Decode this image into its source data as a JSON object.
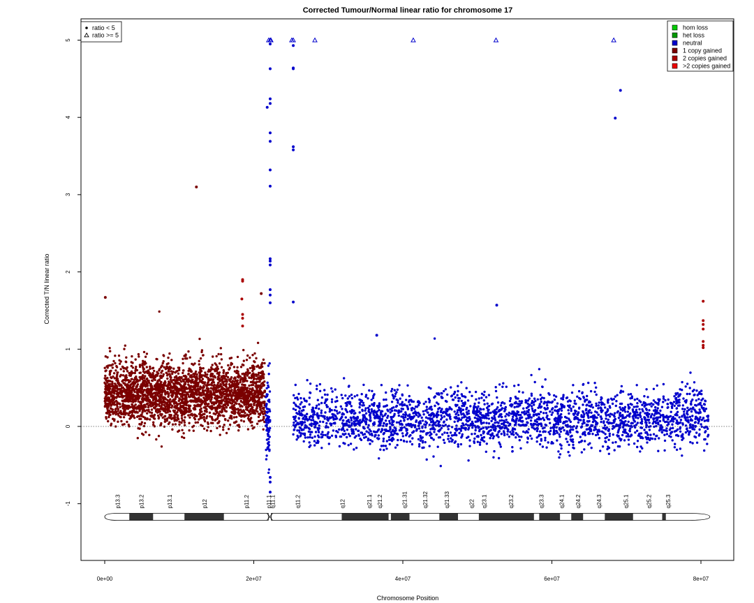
{
  "chart_data": {
    "type": "scatter",
    "title": "Corrected Tumour/Normal linear ratio for chromosome  17",
    "xlabel": "Chromosome Position",
    "ylabel": "Corrected T/N linear ratio",
    "xlim": [
      -3000000,
      84000000
    ],
    "ylim": [
      -1.8,
      5.3
    ],
    "x_ticks": [
      0,
      20000000,
      40000000,
      60000000,
      80000000
    ],
    "x_tick_labels": [
      "0e+00",
      "2e+07",
      "4e+07",
      "6e+07",
      "8e+07"
    ],
    "y_ticks": [
      -1,
      0,
      1,
      2,
      3,
      4,
      5
    ],
    "y_tick_labels": [
      "-1",
      "0",
      "1",
      "2",
      "3",
      "4",
      "5"
    ],
    "reference_line_y": 0,
    "colors": {
      "hom_loss": "#00cc00",
      "het_loss": "#009900",
      "neutral": "#0000cc",
      "one_copy_gained": "#7a0000",
      "two_copies_gained": "#aa0000",
      "more_copies_gained": "#ee0000"
    },
    "legend_state": {
      "position": "top-right",
      "entries": [
        {
          "label": "hom loss",
          "color": "#00cc00"
        },
        {
          "label": "het loss",
          "color": "#009900"
        },
        {
          "label": "neutral",
          "color": "#0000cc"
        },
        {
          "label": "1 copy gained",
          "color": "#7a0000"
        },
        {
          "label": "2 copies gained",
          "color": "#aa0000"
        },
        {
          "label": ">2 copies gained",
          "color": "#ee0000"
        }
      ]
    },
    "legend_shape": {
      "position": "top-left",
      "entries": [
        {
          "label": "ratio < 5",
          "shape": "dot"
        },
        {
          "label": "ratio >= 5",
          "shape": "triangle"
        }
      ]
    },
    "segments": [
      {
        "state": "1 copy gained",
        "x_start": 0,
        "x_end": 21500000,
        "mean": 0.42,
        "sd": 0.2
      },
      {
        "state": "neutral",
        "x_start": 21600000,
        "x_end": 22200000,
        "mean": 0.1,
        "sd": 0.3
      },
      {
        "state": "neutral",
        "x_start": 25300000,
        "x_end": 81000000,
        "mean": 0.1,
        "sd": 0.18
      }
    ],
    "outliers": [
      {
        "x": 80000,
        "y": 1.67,
        "state": "1 copy gained"
      },
      {
        "x": 12300000,
        "y": 3.1,
        "state": "1 copy gained"
      },
      {
        "x": 18500000,
        "y": 1.9,
        "state": "2 copies gained"
      },
      {
        "x": 18500000,
        "y": 1.88,
        "state": "2 copies gained"
      },
      {
        "x": 18500000,
        "y": 1.45,
        "state": "2 copies gained"
      },
      {
        "x": 18500000,
        "y": 1.4,
        "state": "2 copies gained"
      },
      {
        "x": 18500000,
        "y": 1.3,
        "state": "2 copies gained"
      },
      {
        "x": 18400000,
        "y": 1.65,
        "state": "2 copies gained"
      },
      {
        "x": 21000000,
        "y": 1.72,
        "state": "1 copy gained"
      },
      {
        "x": 21800000,
        "y": 4.13,
        "state": "neutral"
      },
      {
        "x": 22200000,
        "y": 4.95,
        "state": "neutral"
      },
      {
        "x": 22200000,
        "y": 4.63,
        "state": "neutral"
      },
      {
        "x": 22200000,
        "y": 4.24,
        "state": "neutral"
      },
      {
        "x": 22200000,
        "y": 4.18,
        "state": "neutral"
      },
      {
        "x": 22200000,
        "y": 3.8,
        "state": "neutral"
      },
      {
        "x": 22200000,
        "y": 3.69,
        "state": "neutral"
      },
      {
        "x": 22200000,
        "y": 3.32,
        "state": "neutral"
      },
      {
        "x": 22200000,
        "y": 3.11,
        "state": "neutral"
      },
      {
        "x": 22200000,
        "y": 2.17,
        "state": "neutral"
      },
      {
        "x": 22200000,
        "y": 2.14,
        "state": "neutral"
      },
      {
        "x": 22200000,
        "y": 2.09,
        "state": "neutral"
      },
      {
        "x": 22200000,
        "y": 1.77,
        "state": "neutral"
      },
      {
        "x": 22200000,
        "y": 1.7,
        "state": "neutral"
      },
      {
        "x": 22200000,
        "y": 1.6,
        "state": "neutral"
      },
      {
        "x": 22200000,
        "y": -0.66,
        "state": "neutral"
      },
      {
        "x": 22200000,
        "y": -0.72,
        "state": "neutral"
      },
      {
        "x": 22200000,
        "y": -0.85,
        "state": "neutral"
      },
      {
        "x": 25300000,
        "y": 4.93,
        "state": "neutral"
      },
      {
        "x": 25300000,
        "y": 4.64,
        "state": "neutral"
      },
      {
        "x": 25300000,
        "y": 4.63,
        "state": "neutral"
      },
      {
        "x": 25300000,
        "y": 3.62,
        "state": "neutral"
      },
      {
        "x": 25300000,
        "y": 3.58,
        "state": "neutral"
      },
      {
        "x": 25300000,
        "y": 1.61,
        "state": "neutral"
      },
      {
        "x": 36500000,
        "y": 1.18,
        "state": "neutral"
      },
      {
        "x": 52600000,
        "y": 1.57,
        "state": "neutral"
      },
      {
        "x": 68500000,
        "y": 3.99,
        "state": "neutral"
      },
      {
        "x": 69200000,
        "y": 4.35,
        "state": "neutral"
      },
      {
        "x": 80300000,
        "y": 1.62,
        "state": "2 copies gained"
      },
      {
        "x": 80300000,
        "y": 1.37,
        "state": "2 copies gained"
      },
      {
        "x": 80300000,
        "y": 1.32,
        "state": "2 copies gained"
      },
      {
        "x": 80300000,
        "y": 1.26,
        "state": "2 copies gained"
      },
      {
        "x": 80300000,
        "y": 1.1,
        "state": "2 copies gained"
      },
      {
        "x": 80300000,
        "y": 1.05,
        "state": "2 copies gained"
      },
      {
        "x": 80300000,
        "y": 1.02,
        "state": "2 copies gained"
      }
    ],
    "capped_points": [
      {
        "x": 22000000,
        "y": 5
      },
      {
        "x": 22200000,
        "y": 5
      },
      {
        "x": 22300000,
        "y": 5
      },
      {
        "x": 25100000,
        "y": 5
      },
      {
        "x": 25300000,
        "y": 5
      },
      {
        "x": 28200000,
        "y": 5
      },
      {
        "x": 41400000,
        "y": 5
      },
      {
        "x": 52500000,
        "y": 5
      },
      {
        "x": 68300000,
        "y": 5
      }
    ],
    "ideogram_y": -1.17,
    "ideogram_bands": [
      {
        "name": "p13.3",
        "start": 0,
        "end": 3300000,
        "stain": "white"
      },
      {
        "name": "p13.2",
        "start": 3300000,
        "end": 6500000,
        "stain": "black"
      },
      {
        "name": "p13.1",
        "start": 6500000,
        "end": 10700000,
        "stain": "white"
      },
      {
        "name": "p12",
        "start": 10700000,
        "end": 16000000,
        "stain": "black"
      },
      {
        "name": "p11.2",
        "start": 16000000,
        "end": 22200000,
        "stain": "white"
      },
      {
        "name": "p11.1",
        "start": 22200000,
        "end": 24000000,
        "stain": "white"
      },
      {
        "name": "q11.1",
        "start": 24000000,
        "end": 25800000,
        "stain": "white"
      },
      {
        "name": "q11.2",
        "start": 25800000,
        "end": 31800000,
        "stain": "white"
      },
      {
        "name": "q12",
        "start": 31800000,
        "end": 38100000,
        "stain": "black"
      },
      {
        "name": "q21.1",
        "start": 38100000,
        "end": 38400000,
        "stain": "white"
      },
      {
        "name": "q21.2",
        "start": 38400000,
        "end": 40900000,
        "stain": "black"
      },
      {
        "name": "q21.31",
        "start": 40900000,
        "end": 44900000,
        "stain": "white"
      },
      {
        "name": "q21.32",
        "start": 44900000,
        "end": 47400000,
        "stain": "black"
      },
      {
        "name": "q21.33",
        "start": 47400000,
        "end": 50200000,
        "stain": "white"
      },
      {
        "name": "q22",
        "start": 50200000,
        "end": 57600000,
        "stain": "black"
      },
      {
        "name": "q23.1",
        "start": 57600000,
        "end": 58300000,
        "stain": "white"
      },
      {
        "name": "q23.2",
        "start": 58300000,
        "end": 61100000,
        "stain": "black"
      },
      {
        "name": "q23.3",
        "start": 61100000,
        "end": 62600000,
        "stain": "white"
      },
      {
        "name": "q24.1",
        "start": 62600000,
        "end": 64200000,
        "stain": "black"
      },
      {
        "name": "q24.2",
        "start": 64200000,
        "end": 67100000,
        "stain": "white"
      },
      {
        "name": "q24.3",
        "start": 67100000,
        "end": 70900000,
        "stain": "black"
      },
      {
        "name": "q25.1",
        "start": 70900000,
        "end": 74800000,
        "stain": "white"
      },
      {
        "name": "q25.2",
        "start": 74800000,
        "end": 75300000,
        "stain": "black"
      },
      {
        "name": "q25.3",
        "start": 75300000,
        "end": 81200000,
        "stain": "white"
      }
    ],
    "ideogram_label_x": [
      1800000,
      5000000,
      8800000,
      13500000,
      19100000,
      22100000,
      22600000,
      26000000,
      32000000,
      35600000,
      37000000,
      40300000,
      43100000,
      46000000,
      49300000,
      51000000,
      54600000,
      58700000,
      61400000,
      63600000,
      66400000,
      70000000,
      73100000,
      75700000
    ]
  }
}
